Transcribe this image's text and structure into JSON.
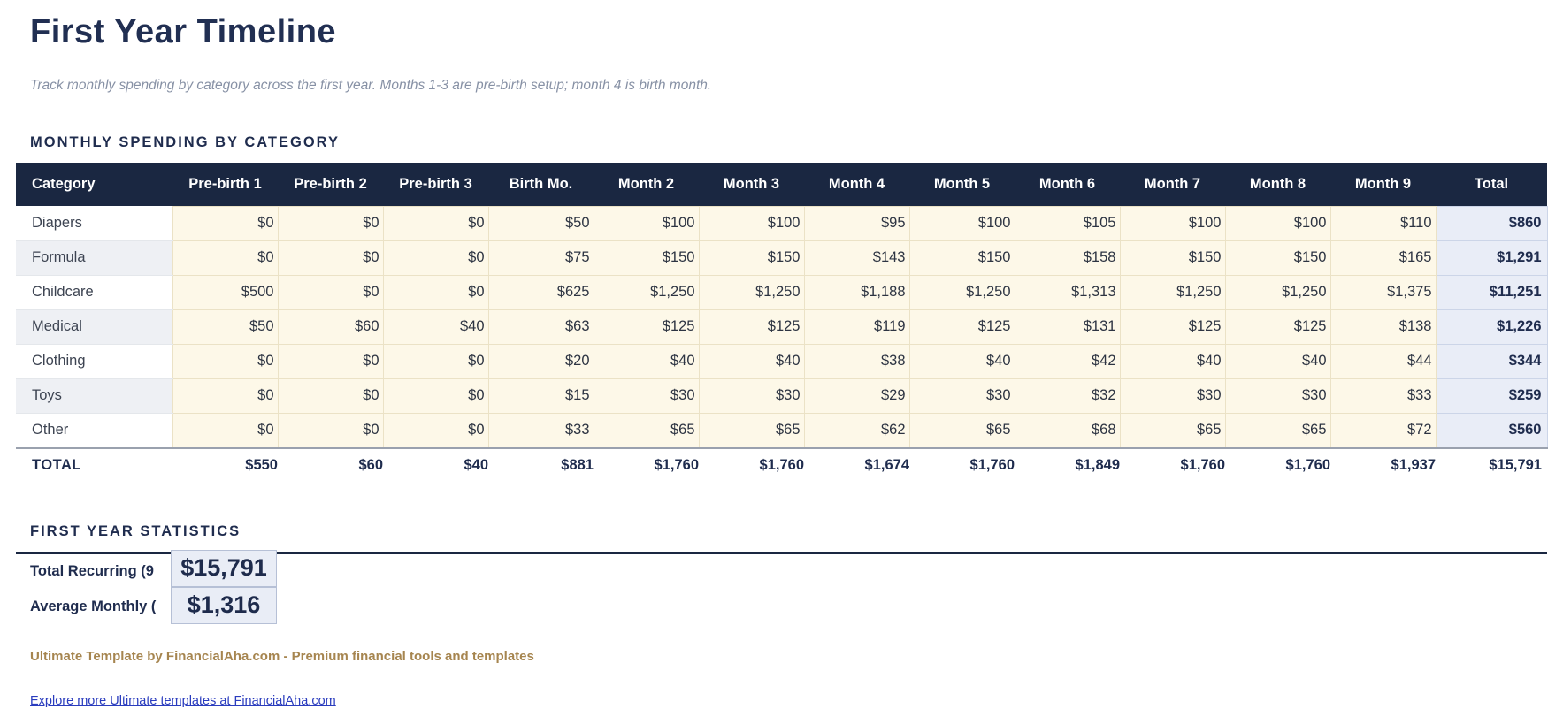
{
  "header": {
    "title": "First Year Timeline",
    "subtitle": "Track monthly spending by category across the first year. Months 1-3 are pre-birth setup; month 4 is birth month."
  },
  "table_section": {
    "heading": "MONTHLY SPENDING BY CATEGORY"
  },
  "table": {
    "columns": [
      "Category",
      "Pre-birth 1",
      "Pre-birth 2",
      "Pre-birth 3",
      "Birth Mo.",
      "Month 2",
      "Month 3",
      "Month 4",
      "Month 5",
      "Month 6",
      "Month 7",
      "Month 8",
      "Month 9",
      "Total"
    ],
    "rows": [
      {
        "category": "Diapers",
        "values": [
          "$0",
          "$0",
          "$0",
          "$50",
          "$100",
          "$100",
          "$95",
          "$100",
          "$105",
          "$100",
          "$100",
          "$110"
        ],
        "total": "$860"
      },
      {
        "category": "Formula",
        "values": [
          "$0",
          "$0",
          "$0",
          "$75",
          "$150",
          "$150",
          "$143",
          "$150",
          "$158",
          "$150",
          "$150",
          "$165"
        ],
        "total": "$1,291"
      },
      {
        "category": "Childcare",
        "values": [
          "$500",
          "$0",
          "$0",
          "$625",
          "$1,250",
          "$1,250",
          "$1,188",
          "$1,250",
          "$1,313",
          "$1,250",
          "$1,250",
          "$1,375"
        ],
        "total": "$11,251"
      },
      {
        "category": "Medical",
        "values": [
          "$50",
          "$60",
          "$40",
          "$63",
          "$125",
          "$125",
          "$119",
          "$125",
          "$131",
          "$125",
          "$125",
          "$138"
        ],
        "total": "$1,226"
      },
      {
        "category": "Clothing",
        "values": [
          "$0",
          "$0",
          "$0",
          "$20",
          "$40",
          "$40",
          "$38",
          "$40",
          "$42",
          "$40",
          "$40",
          "$44"
        ],
        "total": "$344"
      },
      {
        "category": "Toys",
        "values": [
          "$0",
          "$0",
          "$0",
          "$15",
          "$30",
          "$30",
          "$29",
          "$30",
          "$32",
          "$30",
          "$30",
          "$33"
        ],
        "total": "$259"
      },
      {
        "category": "Other",
        "values": [
          "$0",
          "$0",
          "$0",
          "$33",
          "$65",
          "$65",
          "$62",
          "$65",
          "$68",
          "$65",
          "$65",
          "$72"
        ],
        "total": "$560"
      }
    ],
    "total_row": {
      "label": "TOTAL",
      "values": [
        "$550",
        "$60",
        "$40",
        "$881",
        "$1,760",
        "$1,760",
        "$1,674",
        "$1,760",
        "$1,849",
        "$1,760",
        "$1,760",
        "$1,937"
      ],
      "total": "$15,791"
    }
  },
  "stats_section": {
    "heading": "FIRST YEAR STATISTICS",
    "stats": [
      {
        "label": "Total Recurring (9",
        "value": "$15,791"
      },
      {
        "label": "Average Monthly (",
        "value": "$1,316"
      }
    ]
  },
  "footer": {
    "branding": "Ultimate Template by FinancialAha.com - Premium financial tools and templates",
    "link": "Explore more Ultimate templates at FinancialAha.com"
  },
  "colors": {
    "header_navy": "#1a2741",
    "title_navy": "#212f52",
    "cell_cream": "#fdf8e8",
    "cream_border": "#ebe2c6",
    "total_col_bg": "#e9edf7",
    "total_col_border": "#ccd5e8",
    "alt_row_gray": "#eef0f4",
    "subtitle_gray": "#8791a5",
    "footer_tan": "#a6854f",
    "link_blue": "#2a3cbe",
    "stat_box_bg": "#e9edf6",
    "stat_box_border": "#b6c0d6"
  }
}
